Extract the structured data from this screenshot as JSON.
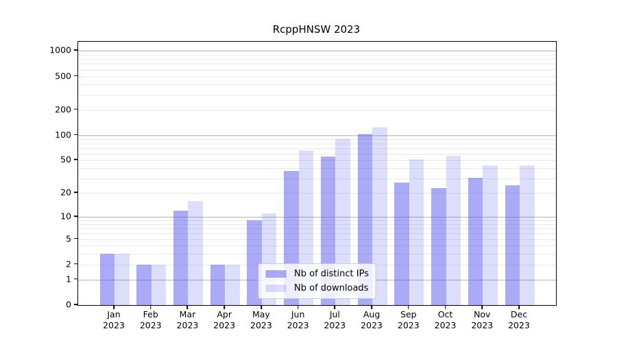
{
  "title": "RcppHNSW 2023",
  "colors": {
    "ips_bar": "rgba(85,85,239,0.5)",
    "downloads_bar": "rgba(85,85,239,0.2)",
    "major_grid": "#b3b3b3",
    "minor_grid": "#e9e9e9",
    "frame": "#000000"
  },
  "legend": {
    "items": [
      {
        "label": "Nb of distinct IPs",
        "color_key": "ips_bar"
      },
      {
        "label": "Nb of downloads",
        "color_key": "downloads_bar"
      }
    ]
  },
  "chart_data": {
    "type": "bar",
    "title": "RcppHNSW 2023",
    "categories": [
      "Jan",
      "Feb",
      "Mar",
      "Apr",
      "May",
      "Jun",
      "Jul",
      "Aug",
      "Sep",
      "Oct",
      "Nov",
      "Dec"
    ],
    "year_label": "2023",
    "series": [
      {
        "name": "Nb of distinct IPs",
        "values": [
          3,
          2,
          12,
          2,
          9,
          37,
          55,
          103,
          27,
          23,
          31,
          25
        ]
      },
      {
        "name": "Nb of downloads",
        "values": [
          3,
          2,
          16,
          2,
          11,
          66,
          91,
          125,
          51,
          57,
          43,
          43
        ]
      }
    ],
    "y_ticks": [
      0,
      1,
      2,
      5,
      10,
      20,
      50,
      100,
      200,
      500,
      1000
    ],
    "y_scale": "log1p",
    "ylim": [
      0,
      1280
    ],
    "xlabel": "",
    "ylabel": "",
    "grid": true,
    "legend_position": "lower center"
  }
}
